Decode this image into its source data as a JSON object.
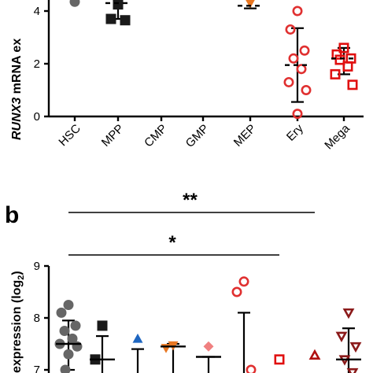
{
  "chart_data": [
    {
      "type": "scatter",
      "panel_label": "",
      "ylabel_italic": "RUNX3",
      "ylabel_rest": " mRNA ex",
      "categories": [
        "HSC",
        "MPP",
        "CMP",
        "GMP",
        "MEP",
        "Ery",
        "Mega"
      ],
      "yticks": [
        "0",
        "2",
        "4"
      ],
      "ylim": [
        0,
        4.6
      ],
      "groups": [
        {
          "category": "HSC",
          "marker": "circle",
          "filled": true,
          "color": "#666666",
          "points": [
            4.35
          ],
          "mean": null,
          "sd": null
        },
        {
          "category": "MPP",
          "marker": "square",
          "filled": true,
          "color": "#1a1a1a",
          "points": [
            4.25,
            3.7,
            3.65
          ],
          "mean": 4.3,
          "sd": [
            3.7,
            4.45
          ]
        },
        {
          "category": "CMP",
          "marker": "none",
          "filled": true,
          "color": "#000000",
          "points": [],
          "mean": null,
          "sd": null
        },
        {
          "category": "GMP",
          "marker": "none",
          "filled": true,
          "color": "#000000",
          "points": [],
          "mean": null,
          "sd": null
        },
        {
          "category": "MEP",
          "marker": "triangle-down",
          "filled": true,
          "color": "#e87722",
          "points": [
            4.3
          ],
          "mean": 4.2,
          "sd": [
            4.1,
            4.5
          ]
        },
        {
          "category": "Ery",
          "marker": "circle",
          "filled": false,
          "color": "#e03030",
          "points": [
            4.0,
            3.3,
            2.5,
            2.2,
            1.8,
            1.3,
            1.0,
            0.1
          ],
          "mean": 1.95,
          "sd": [
            0.55,
            3.35
          ]
        },
        {
          "category": "Mega",
          "marker": "square",
          "filled": false,
          "color": "#e01010",
          "points": [
            2.6,
            2.35,
            2.2,
            2.15,
            1.9,
            1.6,
            1.2
          ],
          "mean": 2.2,
          "sd": [
            1.6,
            2.6
          ]
        }
      ]
    },
    {
      "type": "scatter",
      "panel_label": "b",
      "ylabel": "expression (log",
      "ylabel_sub": "2",
      "ylabel_close": ")",
      "yticks": [
        "7",
        "8",
        "9"
      ],
      "ylim": [
        6.9,
        9.4
      ],
      "significance": [
        {
          "label": "**",
          "from": "HSC",
          "to": "Mega"
        },
        {
          "label": "*",
          "from": "HSC",
          "to": "Ery"
        }
      ],
      "groups": [
        {
          "marker": "circle",
          "filled": true,
          "color": "#666666",
          "points": [
            8.25,
            8.1,
            7.85,
            7.75,
            7.6,
            7.5,
            7.45,
            7.3,
            7.0
          ],
          "mean": 7.5,
          "sd": [
            7.0,
            7.95
          ]
        },
        {
          "marker": "square",
          "filled": true,
          "color": "#1a1a1a",
          "points": [
            7.85,
            7.2
          ],
          "mean": 7.2,
          "sd": [
            6.9,
            7.65
          ]
        },
        {
          "marker": "triangle-up",
          "filled": true,
          "color": "#1e66c0",
          "points": [
            7.6
          ],
          "mean": null,
          "sd": [
            6.9,
            7.4
          ]
        },
        {
          "marker": "triangle-down",
          "filled": true,
          "color": "#e87722",
          "points": [
            7.47,
            7.42
          ],
          "mean": 7.45,
          "sd": [
            6.9,
            7.5
          ]
        },
        {
          "marker": "diamond",
          "filled": true,
          "color": "#f08080",
          "points": [
            7.45
          ],
          "mean": 7.25,
          "sd": [
            6.9,
            7.25
          ]
        },
        {
          "marker": "circle",
          "filled": false,
          "color": "#e03030",
          "points": [
            8.7,
            8.5,
            7.0
          ],
          "mean": null,
          "sd": [
            6.9,
            8.1
          ]
        },
        {
          "marker": "square",
          "filled": false,
          "color": "#e01010",
          "points": [
            7.2
          ],
          "mean": null,
          "sd": null
        },
        {
          "marker": "triangle-up",
          "filled": false,
          "color": "#b01010",
          "points": [
            7.28
          ],
          "mean": null,
          "sd": null
        },
        {
          "marker": "triangle-down",
          "filled": false,
          "color": "#8b1a1a",
          "points": [
            8.1,
            7.65,
            7.45,
            7.2,
            6.95
          ],
          "mean": 7.2,
          "sd": [
            6.9,
            7.8
          ]
        }
      ]
    }
  ]
}
